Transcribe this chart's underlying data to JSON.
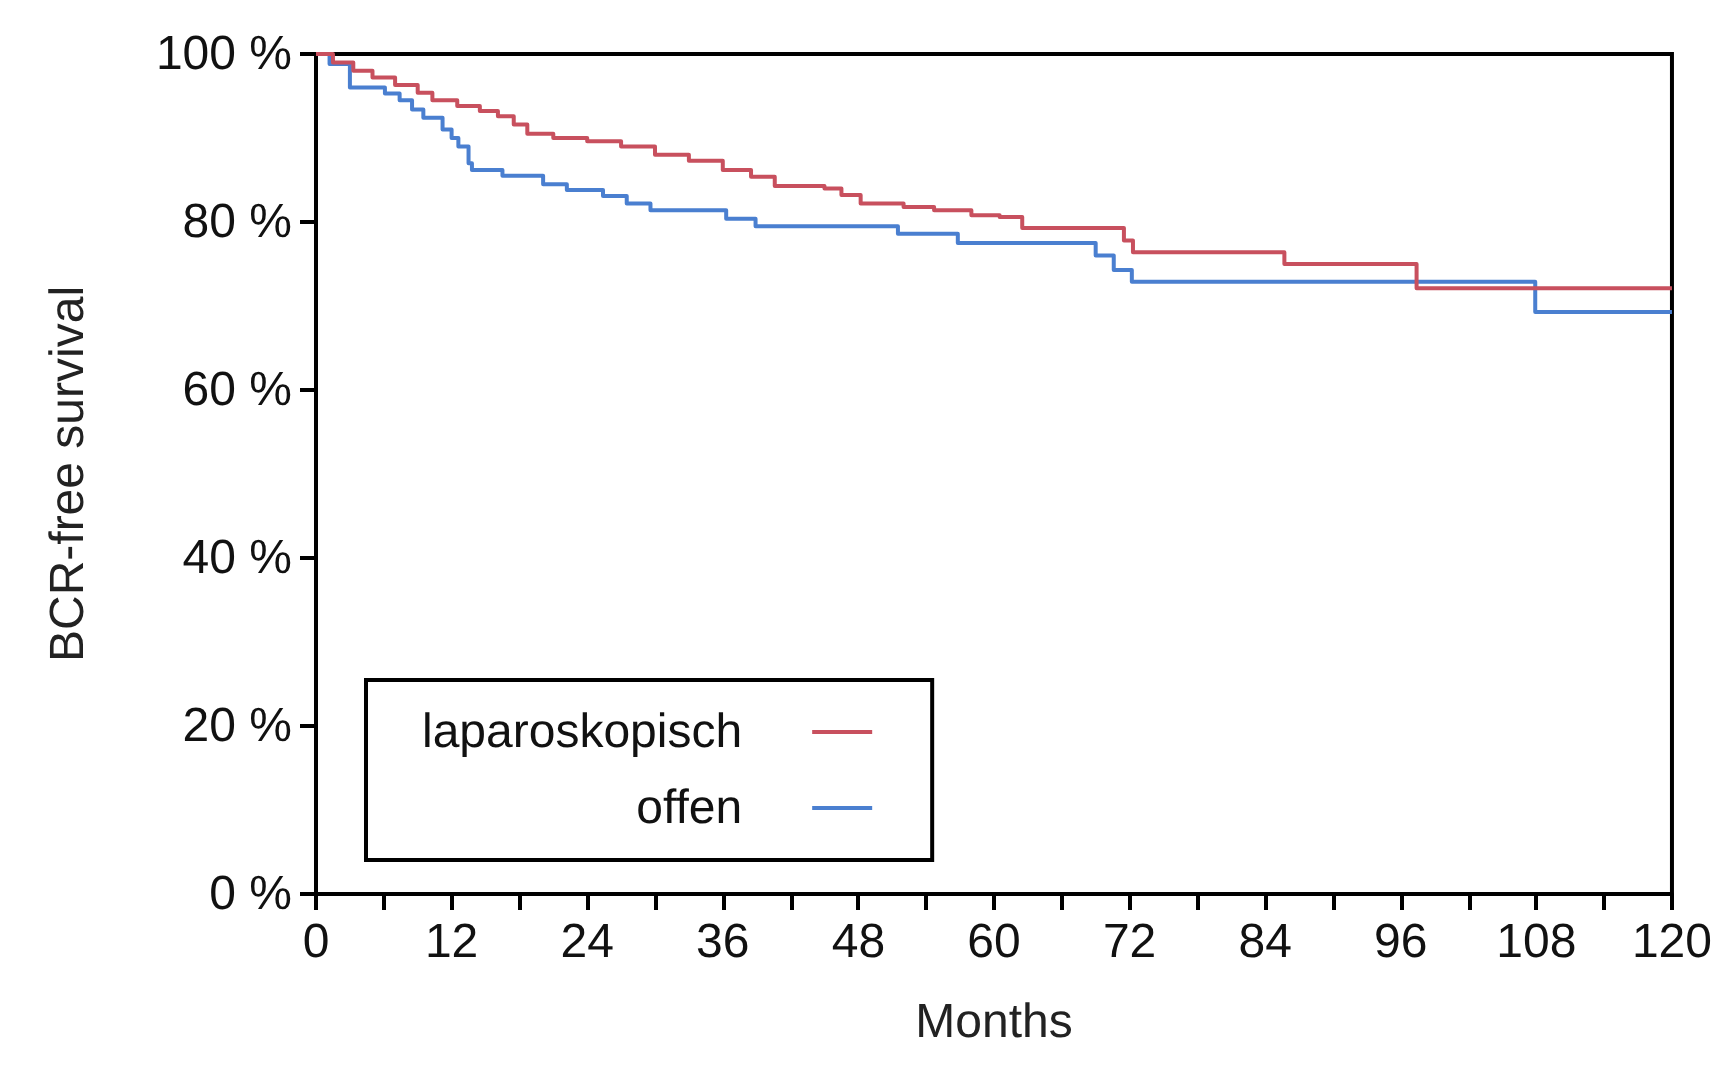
{
  "chart_data": {
    "type": "step",
    "xlabel": "Months",
    "ylabel": "BCR-free survival",
    "xlim": [
      0,
      120
    ],
    "ylim": [
      0,
      100
    ],
    "xticks": [
      0,
      {
        "value": 6,
        "label": null
      },
      12,
      {
        "value": 18,
        "label": null
      },
      24,
      {
        "value": 30,
        "label": null
      },
      36,
      {
        "value": 42,
        "label": null
      },
      48,
      {
        "value": 54,
        "label": null
      },
      60,
      {
        "value": 66,
        "label": null
      },
      72,
      {
        "value": 78,
        "label": null
      },
      84,
      {
        "value": 90,
        "label": null
      },
      96,
      {
        "value": 102,
        "label": null
      },
      108,
      {
        "value": 114,
        "label": null
      },
      120
    ],
    "yticks": [
      {
        "value": 0,
        "label": "0 %"
      },
      {
        "value": 20,
        "label": "20 %"
      },
      {
        "value": 40,
        "label": "40 %"
      },
      {
        "value": 60,
        "label": "60 %"
      },
      {
        "value": 80,
        "label": "80 %"
      },
      {
        "value": 100,
        "label": "100 %"
      }
    ],
    "grid": false,
    "legend": "bottom left",
    "marker": "none",
    "series": [
      {
        "name": "laparoskopisch",
        "color": "#c8505e",
        "x": [
          0,
          1.5,
          3.3,
          5,
          7,
          9,
          10.3,
          12.5,
          14.5,
          16.1,
          17.5,
          18.7,
          21,
          24,
          27,
          30,
          33,
          36,
          38.5,
          40.6,
          45,
          46.5,
          48.2,
          52,
          54.7,
          58,
          60.5,
          62.5,
          71.5,
          72.3,
          85.7,
          97.4,
          120
        ],
        "values": [
          100,
          99,
          98,
          97.2,
          96.3,
          95.4,
          94.5,
          93.8,
          93.2,
          92.6,
          91.6,
          90.5,
          90,
          89.6,
          89,
          88,
          87.3,
          86.2,
          85.4,
          84.3,
          84,
          83.2,
          82.2,
          81.8,
          81.4,
          80.8,
          80.6,
          79.3,
          77.8,
          76.4,
          75,
          72.1,
          72.1
        ]
      },
      {
        "name": "offen",
        "color": "#4a7fd0",
        "x": [
          0,
          1.2,
          3,
          6.1,
          7.4,
          8.5,
          9.5,
          11.2,
          12,
          12.6,
          13.5,
          13.8,
          16.5,
          20.1,
          22.2,
          25.4,
          27.5,
          29.6,
          36.3,
          38.9,
          51.5,
          56.8,
          69,
          70.6,
          72.2,
          107.9,
          120
        ],
        "values": [
          100,
          98.8,
          96,
          95.3,
          94.5,
          93.4,
          92.4,
          91,
          90,
          89,
          87,
          86.2,
          85.5,
          84.5,
          83.8,
          83.1,
          82.2,
          81.4,
          80.4,
          79.5,
          78.6,
          77.5,
          76,
          74.3,
          72.9,
          69.3,
          69.3
        ]
      }
    ]
  }
}
